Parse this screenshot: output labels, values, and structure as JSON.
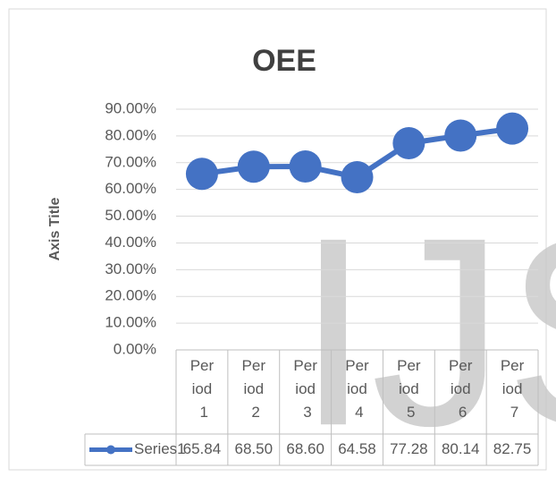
{
  "chart_data": {
    "type": "line",
    "title": "OEE",
    "y_label": "Axis Title",
    "watermark": "IJS",
    "categories": [
      "Period 1",
      "Period 2",
      "Period 3",
      "Period 4",
      "Period 5",
      "Period 6",
      "Period 7"
    ],
    "series": [
      {
        "name": "Series1",
        "color": "#4472c4",
        "values": [
          65.84,
          68.5,
          68.6,
          64.58,
          77.28,
          80.14,
          82.75
        ],
        "value_labels": [
          "65.84",
          "68.50",
          "68.60",
          "64.58",
          "77.28",
          "80.14",
          "82.75"
        ]
      }
    ],
    "ylim": [
      0,
      90
    ],
    "yticks": [
      {
        "value": 0,
        "label": "0.00%"
      },
      {
        "value": 10,
        "label": "10.00%"
      },
      {
        "value": 20,
        "label": "20.00%"
      },
      {
        "value": 30,
        "label": "30.00%"
      },
      {
        "value": 40,
        "label": "40.00%"
      },
      {
        "value": 50,
        "label": "50.00%"
      },
      {
        "value": 60,
        "label": "60.00%"
      },
      {
        "value": 70,
        "label": "70.00%"
      },
      {
        "value": 80,
        "label": "80.00%"
      },
      {
        "value": 90,
        "label": "90.00%"
      }
    ],
    "grid": true,
    "data_table": true
  }
}
